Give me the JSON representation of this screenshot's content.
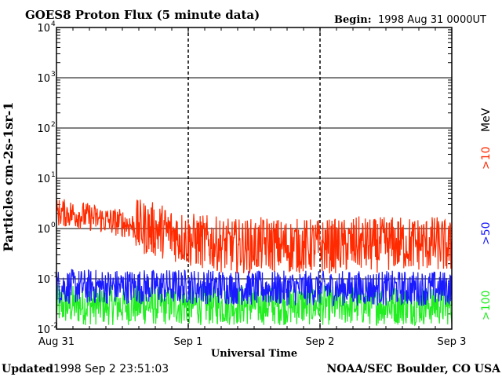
{
  "chart_data": {
    "type": "line",
    "title": "GOES8 Proton Flux (5 minute data)",
    "begin_label": "Begin:",
    "begin_value": "1998 Aug 31 0000UT",
    "xlabel": "Universal Time",
    "ylabel": "Particles cm-2s-1sr-1",
    "y_scale": "log",
    "ylim": [
      0.01,
      10000
    ],
    "y_ticks": [
      {
        "base": "10",
        "exp": "4",
        "value": 10000
      },
      {
        "base": "10",
        "exp": "3",
        "value": 1000
      },
      {
        "base": "10",
        "exp": "2",
        "value": 100
      },
      {
        "base": "10",
        "exp": "1",
        "value": 10
      },
      {
        "base": "10",
        "exp": "0",
        "value": 1
      },
      {
        "base": "10",
        "exp": "-1",
        "value": 0.1
      },
      {
        "base": "10",
        "exp": "-2",
        "value": 0.01
      }
    ],
    "x_ticks": [
      "Aug 31",
      "Sep 1",
      "Sep 2",
      "Sep 3"
    ],
    "xlim_days": [
      0,
      3
    ],
    "grid": true,
    "series": [
      {
        "name": ">10 MeV",
        "legend_main": ">10",
        "legend_unit": "MeV",
        "color": "#ff2a00",
        "points": [
          [
            0.0,
            2.1
          ],
          [
            0.1,
            2.0
          ],
          [
            0.2,
            1.8
          ],
          [
            0.3,
            1.6
          ],
          [
            0.4,
            1.4
          ],
          [
            0.5,
            1.3
          ],
          [
            0.6,
            1.1
          ],
          [
            0.7,
            1.0
          ],
          [
            0.8,
            0.9
          ],
          [
            0.9,
            0.75
          ],
          [
            1.0,
            0.6
          ],
          [
            1.1,
            0.55
          ],
          [
            1.2,
            0.5
          ],
          [
            1.3,
            0.45
          ],
          [
            1.4,
            0.45
          ],
          [
            1.5,
            0.45
          ],
          [
            1.6,
            0.5
          ],
          [
            1.7,
            0.45
          ],
          [
            1.8,
            0.45
          ],
          [
            1.9,
            0.45
          ],
          [
            2.0,
            0.45
          ],
          [
            2.1,
            0.45
          ],
          [
            2.2,
            0.45
          ],
          [
            2.3,
            0.5
          ],
          [
            2.4,
            0.45
          ],
          [
            2.5,
            0.5
          ],
          [
            2.6,
            0.5
          ],
          [
            2.7,
            0.5
          ],
          [
            2.8,
            0.5
          ],
          [
            2.9,
            0.5
          ],
          [
            3.0,
            0.4
          ]
        ]
      },
      {
        "name": ">50",
        "legend_main": ">50",
        "color": "#1a1aff",
        "points": [
          [
            0.0,
            0.07
          ],
          [
            0.25,
            0.07
          ],
          [
            0.5,
            0.07
          ],
          [
            0.75,
            0.07
          ],
          [
            1.0,
            0.07
          ],
          [
            1.25,
            0.07
          ],
          [
            1.5,
            0.065
          ],
          [
            1.75,
            0.065
          ],
          [
            2.0,
            0.065
          ],
          [
            2.25,
            0.065
          ],
          [
            2.5,
            0.065
          ],
          [
            2.75,
            0.065
          ],
          [
            3.0,
            0.065
          ]
        ]
      },
      {
        "name": ">100",
        "legend_main": ">100",
        "color": "#22ee22",
        "points": [
          [
            0.0,
            0.03
          ],
          [
            0.25,
            0.03
          ],
          [
            0.5,
            0.03
          ],
          [
            0.75,
            0.03
          ],
          [
            1.0,
            0.03
          ],
          [
            1.25,
            0.03
          ],
          [
            1.5,
            0.03
          ],
          [
            1.75,
            0.03
          ],
          [
            2.0,
            0.03
          ],
          [
            2.25,
            0.03
          ],
          [
            2.5,
            0.03
          ],
          [
            2.75,
            0.03
          ],
          [
            3.0,
            0.03
          ]
        ]
      }
    ]
  },
  "footer": {
    "updated_label": "Updated",
    "updated_value": "1998 Sep  2 23:51:03",
    "credit": "NOAA/SEC Boulder, CO USA"
  }
}
